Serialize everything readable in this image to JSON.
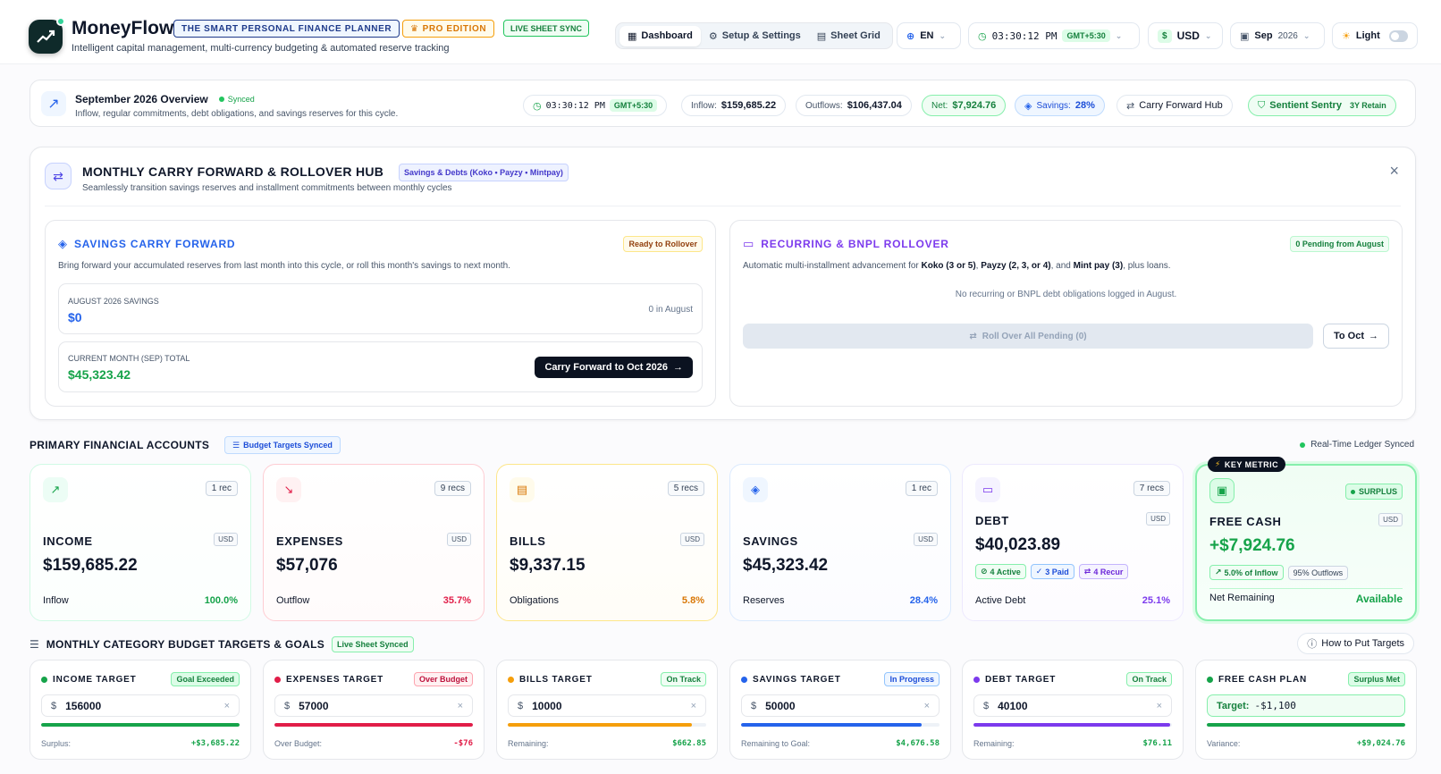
{
  "header": {
    "app_name": "MoneyFlow",
    "badge_planner": "THE SMART PERSONAL FINANCE PLANNER",
    "badge_pro": "PRO EDITION",
    "badge_sync": "LIVE SHEET SYNC",
    "subtitle": "Intelligent capital management, multi-currency budgeting & automated reserve tracking",
    "nav": [
      "Dashboard",
      "Setup & Settings",
      "Sheet Grid"
    ],
    "lang": "EN",
    "time": "03:30:12 PM",
    "tz": "GMT+5:30",
    "currency_symbol": "$",
    "currency": "USD",
    "month": "Sep",
    "year": "2026",
    "theme": "Light"
  },
  "overview": {
    "title": "September 2026 Overview",
    "status": "Synced",
    "subtitle": "Inflow, regular commitments, debt obligations, and savings reserves for this cycle.",
    "time": "03:30:12 PM",
    "tz": "GMT+5:30",
    "inflow_label": "Inflow:",
    "inflow": "$159,685.22",
    "outflows_label": "Outflows:",
    "outflows": "$106,437.04",
    "net_label": "Net:",
    "net": "$7,924.76",
    "savings_label": "Savings:",
    "savings": "28%",
    "carry_hub": "Carry Forward Hub",
    "sentry": "Sentient Sentry",
    "retain": "3Y Retain"
  },
  "hub": {
    "title": "MONTHLY CARRY FORWARD & ROLLOVER HUB",
    "tag": "Savings & Debts (Koko • Payzy • Mintpay)",
    "subtitle": "Seamlessly transition savings reserves and installment commitments between monthly cycles",
    "close": "×",
    "savings": {
      "title": "SAVINGS CARRY FORWARD",
      "status": "Ready to Rollover",
      "desc": "Bring forward your accumulated reserves from last month into this cycle, or roll this month's savings to next month.",
      "aug_label": "AUGUST 2026 SAVINGS",
      "aug_value": "$0",
      "aug_note": "0 in August",
      "cur_label": "CURRENT MONTH (SEP) TOTAL",
      "cur_value": "$45,323.42",
      "button": "Carry Forward to Oct 2026"
    },
    "rollover": {
      "title": "RECURRING & BNPL ROLLOVER",
      "status": "0 Pending from August",
      "desc_a": "Automatic multi-installment advancement for ",
      "koko": "Koko (3 or 5)",
      "sep1": ", ",
      "payzy": "Payzy (2, 3, or 4)",
      "sep2": ", and ",
      "mint": "Mint pay (3)",
      "desc_b": ", plus loans.",
      "empty": "No recurring or BNPL debt obligations logged in August.",
      "roll_button": "Roll Over All Pending (0)",
      "to_button": "To Oct"
    }
  },
  "accounts": {
    "title": "PRIMARY FINANCIAL ACCOUNTS",
    "tag": "Budget Targets Synced",
    "live": "Real-Time Ledger Synced",
    "cards": [
      {
        "name": "INCOME",
        "recs": "1 rec",
        "cur": "USD",
        "amount": "$159,685.22",
        "foot_label": "Inflow",
        "foot_value": "100.0%",
        "color": "#16a34a"
      },
      {
        "name": "EXPENSES",
        "recs": "9 recs",
        "cur": "USD",
        "amount": "$57,076",
        "foot_label": "Outflow",
        "foot_value": "35.7%",
        "color": "#e11d48"
      },
      {
        "name": "BILLS",
        "recs": "5 recs",
        "cur": "USD",
        "amount": "$9,337.15",
        "foot_label": "Obligations",
        "foot_value": "5.8%",
        "color": "#d97706"
      },
      {
        "name": "SAVINGS",
        "recs": "1 rec",
        "cur": "USD",
        "amount": "$45,323.42",
        "foot_label": "Reserves",
        "foot_value": "28.4%",
        "color": "#2563eb"
      },
      {
        "name": "DEBT",
        "recs": "7 recs",
        "cur": "USD",
        "amount": "$40,023.89",
        "foot_label": "Active Debt",
        "foot_value": "25.1%",
        "color": "#7c3aed",
        "chips": [
          "4 Active",
          "3 Paid",
          "4 Recur"
        ]
      },
      {
        "name": "FREE CASH",
        "key": "KEY METRIC",
        "surplus": "SURPLUS",
        "cur": "USD",
        "amount": "+$7,924.76",
        "foot_label": "Net Remaining",
        "foot_value": "Available",
        "color": "#16a34a",
        "chips": [
          "5.0% of Inflow",
          "95% Outflows"
        ]
      }
    ]
  },
  "targets": {
    "title": "MONTHLY CATEGORY BUDGET TARGETS & GOALS",
    "tag": "Live Sheet Synced",
    "help": "How to Put Targets",
    "cards": [
      {
        "name": "INCOME TARGET",
        "status": "Goal Exceeded",
        "symbol": "$",
        "value": "156000",
        "foot_label": "Surplus:",
        "foot_value": "+$3,685.22",
        "color": "#16a34a",
        "progress": 1.0
      },
      {
        "name": "EXPENSES TARGET",
        "status": "Over Budget",
        "symbol": "$",
        "value": "57000",
        "foot_label": "Over Budget:",
        "foot_value": "-$76",
        "color": "#e11d48",
        "progress": 1.0
      },
      {
        "name": "BILLS TARGET",
        "status": "On Track",
        "symbol": "$",
        "value": "10000",
        "foot_label": "Remaining:",
        "foot_value": "$662.85",
        "color": "#f59e0b",
        "progress": 0.93
      },
      {
        "name": "SAVINGS TARGET",
        "status": "In Progress",
        "symbol": "$",
        "value": "50000",
        "foot_label": "Remaining to Goal:",
        "foot_value": "$4,676.58",
        "color": "#2563eb",
        "progress": 0.91
      },
      {
        "name": "DEBT TARGET",
        "status": "On Track",
        "symbol": "$",
        "value": "40100",
        "foot_label": "Remaining:",
        "foot_value": "$76.11",
        "color": "#7c3aed",
        "progress": 0.99
      },
      {
        "name": "FREE CASH PLAN",
        "status": "Surplus Met",
        "plan_label": "Target:",
        "plan_value": "-$1,100",
        "foot_label": "Variance:",
        "foot_value": "+$9,024.76",
        "color": "#16a34a",
        "progress": 1.0
      }
    ]
  }
}
